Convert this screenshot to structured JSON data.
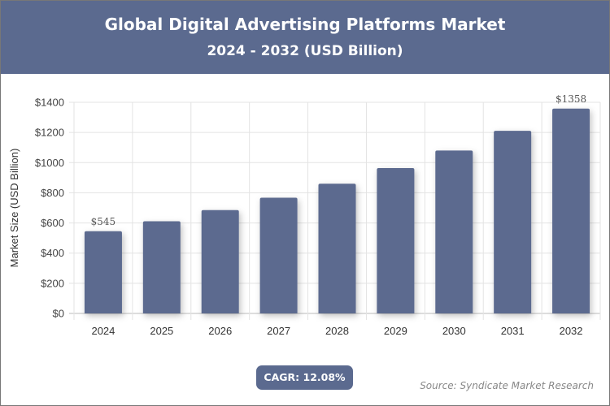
{
  "chart_data": {
    "type": "bar",
    "title": "Global Digital Advertising Platforms Market",
    "subtitle": "2024 - 2032 (USD Billion)",
    "xlabel": "",
    "ylabel": "Market Size (USD Billion)",
    "categories": [
      "2024",
      "2025",
      "2026",
      "2027",
      "2028",
      "2029",
      "2030",
      "2031",
      "2032"
    ],
    "values": [
      545,
      611,
      685,
      767,
      860,
      964,
      1080,
      1211,
      1358
    ],
    "data_labels": {
      "0": "$545",
      "8": "$1358"
    },
    "ylim": [
      0,
      1400
    ],
    "yticks": [
      0,
      200,
      400,
      600,
      800,
      1000,
      1200,
      1400
    ],
    "ytick_labels": [
      "$0",
      "$200",
      "$400",
      "$600",
      "$800",
      "$1000",
      "$1200",
      "$1400"
    ],
    "grid": true,
    "bar_color": "#5b6a8f"
  },
  "cagr": "CAGR: 12.08%",
  "source": "Source: Syndicate Market Research"
}
